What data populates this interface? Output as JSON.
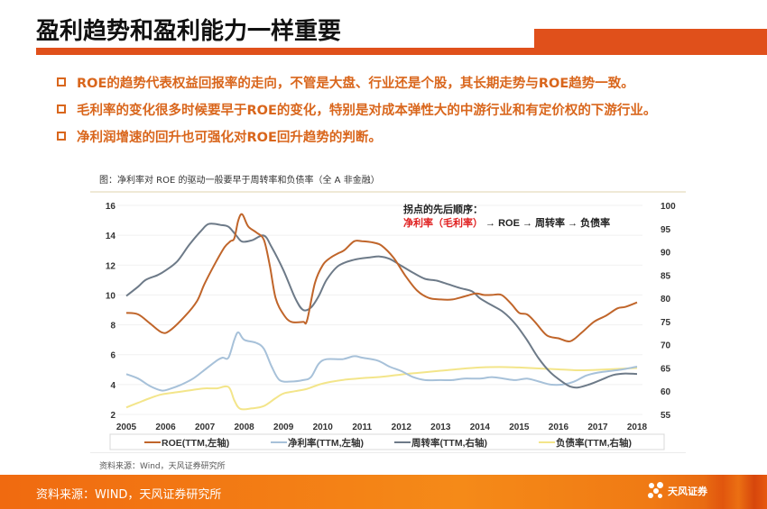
{
  "header": {
    "title": "盈利趋势和盈利能力一样重要"
  },
  "bullets": [
    "ROE的趋势代表权益回报率的走向，不管是大盘、行业还是个股，其长期走势与ROE趋势一致。",
    "毛利率的变化很多时候要早于ROE的变化，特别是对成本弹性大的中游行业和有定价权的下游行业。",
    "净利润增速的回升也可强化对ROE回升趋势的判断。"
  ],
  "figure": {
    "caption": "图：净利率对 ROE 的驱动一般要早于周转率和负债率（全 A 非金融）",
    "source": "资料来源：Wind，天风证券研究所"
  },
  "footer": {
    "source": "资料来源：WIND，天风证券研究所",
    "logo_text": "天风证券"
  },
  "chart_data": {
    "type": "line",
    "title": "净利率对 ROE 的驱动一般要早于周转率和负债率（全 A 非金融）",
    "annotation": {
      "line1": "拐点的先后顺序：",
      "line2_red": "净利率（毛利率）",
      "line2_rest": " → ROE → 周转率 → 负债率"
    },
    "x_ticks": [
      "2005",
      "2006",
      "2007",
      "2008",
      "2009",
      "2010",
      "2011",
      "2012",
      "2013",
      "2014",
      "2015",
      "2016",
      "2017",
      "2018"
    ],
    "xlim": [
      2005,
      2018
    ],
    "left_axis": {
      "ylim": [
        2,
        16
      ],
      "ticks": [
        "2",
        "4",
        "6",
        "8",
        "10",
        "12",
        "14",
        "16"
      ]
    },
    "right_axis": {
      "ylim": [
        55,
        100
      ],
      "ticks": [
        "55",
        "60",
        "65",
        "70",
        "75",
        "80",
        "85",
        "90",
        "95",
        "100"
      ]
    },
    "grid": true,
    "legend_position": "bottom",
    "series": [
      {
        "name": "ROE(TTM,左轴)",
        "axis": "left",
        "color": "#c0652a",
        "points": [
          [
            2005,
            8.8
          ],
          [
            2005.3,
            8.7
          ],
          [
            2005.6,
            8.1
          ],
          [
            2005.9,
            7.5
          ],
          [
            2006.1,
            7.6
          ],
          [
            2006.5,
            8.6
          ],
          [
            2006.8,
            9.6
          ],
          [
            2007.0,
            10.8
          ],
          [
            2007.3,
            12.3
          ],
          [
            2007.5,
            13.2
          ],
          [
            2007.65,
            13.6
          ],
          [
            2007.75,
            13.8
          ],
          [
            2007.85,
            15.0
          ],
          [
            2007.95,
            15.4
          ],
          [
            2008.1,
            14.6
          ],
          [
            2008.3,
            14.2
          ],
          [
            2008.5,
            13.7
          ],
          [
            2008.65,
            12.0
          ],
          [
            2008.8,
            9.8
          ],
          [
            2009.0,
            8.7
          ],
          [
            2009.2,
            8.2
          ],
          [
            2009.5,
            8.2
          ],
          [
            2009.6,
            8.3
          ],
          [
            2009.8,
            10.8
          ],
          [
            2010.0,
            12.0
          ],
          [
            2010.2,
            12.5
          ],
          [
            2010.4,
            12.8
          ],
          [
            2010.55,
            13.0
          ],
          [
            2010.8,
            13.6
          ],
          [
            2011.0,
            13.6
          ],
          [
            2011.3,
            13.5
          ],
          [
            2011.5,
            13.3
          ],
          [
            2011.8,
            12.5
          ],
          [
            2012.1,
            11.3
          ],
          [
            2012.4,
            10.3
          ],
          [
            2012.7,
            9.8
          ],
          [
            2013.0,
            9.7
          ],
          [
            2013.3,
            9.7
          ],
          [
            2013.6,
            9.9
          ],
          [
            2013.9,
            10.1
          ],
          [
            2014.1,
            10.0
          ],
          [
            2014.3,
            10.0
          ],
          [
            2014.55,
            10.0
          ],
          [
            2014.8,
            9.4
          ],
          [
            2015.0,
            8.8
          ],
          [
            2015.2,
            8.7
          ],
          [
            2015.4,
            8.2
          ],
          [
            2015.7,
            7.3
          ],
          [
            2016.0,
            7.1
          ],
          [
            2016.3,
            6.9
          ],
          [
            2016.6,
            7.5
          ],
          [
            2016.9,
            8.2
          ],
          [
            2017.2,
            8.6
          ],
          [
            2017.5,
            9.1
          ],
          [
            2017.7,
            9.2
          ],
          [
            2018.0,
            9.5
          ]
        ]
      },
      {
        "name": "净利率(TTM,左轴)",
        "axis": "left",
        "color": "#a7c1d9",
        "points": [
          [
            2005,
            4.7
          ],
          [
            2005.3,
            4.4
          ],
          [
            2005.6,
            3.9
          ],
          [
            2005.9,
            3.6
          ],
          [
            2006.1,
            3.7
          ],
          [
            2006.4,
            4.0
          ],
          [
            2006.7,
            4.4
          ],
          [
            2007.0,
            5.0
          ],
          [
            2007.3,
            5.6
          ],
          [
            2007.45,
            5.8
          ],
          [
            2007.6,
            5.8
          ],
          [
            2007.75,
            7.0
          ],
          [
            2007.85,
            7.5
          ],
          [
            2008.0,
            7.0
          ],
          [
            2008.3,
            6.8
          ],
          [
            2008.5,
            6.4
          ],
          [
            2008.7,
            5.2
          ],
          [
            2008.9,
            4.3
          ],
          [
            2009.2,
            4.2
          ],
          [
            2009.5,
            4.3
          ],
          [
            2009.7,
            4.5
          ],
          [
            2009.9,
            5.4
          ],
          [
            2010.1,
            5.7
          ],
          [
            2010.5,
            5.7
          ],
          [
            2010.8,
            5.9
          ],
          [
            2011.0,
            5.8
          ],
          [
            2011.4,
            5.6
          ],
          [
            2011.7,
            5.2
          ],
          [
            2012.0,
            4.9
          ],
          [
            2012.3,
            4.5
          ],
          [
            2012.6,
            4.3
          ],
          [
            2013.0,
            4.3
          ],
          [
            2013.3,
            4.3
          ],
          [
            2013.6,
            4.4
          ],
          [
            2014.0,
            4.4
          ],
          [
            2014.3,
            4.5
          ],
          [
            2014.6,
            4.4
          ],
          [
            2014.9,
            4.3
          ],
          [
            2015.2,
            4.4
          ],
          [
            2015.5,
            4.2
          ],
          [
            2015.8,
            4.0
          ],
          [
            2016.1,
            4.0
          ],
          [
            2016.4,
            4.2
          ],
          [
            2016.7,
            4.6
          ],
          [
            2017.0,
            4.8
          ],
          [
            2017.3,
            4.9
          ],
          [
            2017.6,
            5.0
          ],
          [
            2018.0,
            5.2
          ]
        ]
      },
      {
        "name": "周转率(TTM,右轴)",
        "axis": "right",
        "color": "#6d7a88",
        "points": [
          [
            2005,
            80.5
          ],
          [
            2005.3,
            82.5
          ],
          [
            2005.5,
            84.0
          ],
          [
            2005.8,
            85.0
          ],
          [
            2006.0,
            86.0
          ],
          [
            2006.3,
            88.0
          ],
          [
            2006.6,
            91.5
          ],
          [
            2006.9,
            94.5
          ],
          [
            2007.1,
            96.0
          ],
          [
            2007.4,
            95.8
          ],
          [
            2007.6,
            95.4
          ],
          [
            2007.8,
            93.5
          ],
          [
            2007.95,
            92.2
          ],
          [
            2008.2,
            92.5
          ],
          [
            2008.5,
            93.5
          ],
          [
            2008.7,
            91.0
          ],
          [
            2009.0,
            86.0
          ],
          [
            2009.3,
            80.0
          ],
          [
            2009.5,
            77.5
          ],
          [
            2009.7,
            78.0
          ],
          [
            2009.9,
            80.5
          ],
          [
            2010.1,
            84.0
          ],
          [
            2010.4,
            87.0
          ],
          [
            2010.8,
            88.3
          ],
          [
            2011.2,
            88.8
          ],
          [
            2011.45,
            89.0
          ],
          [
            2011.7,
            88.5
          ],
          [
            2012.0,
            87.0
          ],
          [
            2012.3,
            85.5
          ],
          [
            2012.6,
            84.2
          ],
          [
            2012.9,
            83.8
          ],
          [
            2013.2,
            83.0
          ],
          [
            2013.5,
            82.2
          ],
          [
            2013.8,
            81.5
          ],
          [
            2014.0,
            80.0
          ],
          [
            2014.3,
            78.5
          ],
          [
            2014.6,
            77.0
          ],
          [
            2014.9,
            74.5
          ],
          [
            2015.2,
            71.0
          ],
          [
            2015.5,
            67.0
          ],
          [
            2015.8,
            64.0
          ],
          [
            2016.1,
            62.0
          ],
          [
            2016.3,
            61.0
          ],
          [
            2016.5,
            60.8
          ],
          [
            2016.8,
            61.5
          ],
          [
            2017.1,
            62.5
          ],
          [
            2017.4,
            63.5
          ],
          [
            2017.7,
            63.8
          ],
          [
            2018.0,
            63.7
          ]
        ]
      },
      {
        "name": "负债率(TTM,右轴)",
        "axis": "right",
        "color": "#f3e58a",
        "points": [
          [
            2005,
            56.5
          ],
          [
            2005.3,
            57.5
          ],
          [
            2005.6,
            58.5
          ],
          [
            2005.9,
            59.3
          ],
          [
            2006.3,
            59.8
          ],
          [
            2006.7,
            60.3
          ],
          [
            2007.0,
            60.6
          ],
          [
            2007.3,
            60.6
          ],
          [
            2007.6,
            60.9
          ],
          [
            2007.75,
            58.0
          ],
          [
            2007.9,
            56.2
          ],
          [
            2008.2,
            56.3
          ],
          [
            2008.5,
            56.8
          ],
          [
            2008.8,
            58.5
          ],
          [
            2009.0,
            59.5
          ],
          [
            2009.3,
            60.0
          ],
          [
            2009.6,
            60.5
          ],
          [
            2009.9,
            61.4
          ],
          [
            2010.2,
            62.0
          ],
          [
            2010.6,
            62.5
          ],
          [
            2011.0,
            62.8
          ],
          [
            2011.5,
            63.1
          ],
          [
            2012.0,
            63.6
          ],
          [
            2012.5,
            64.0
          ],
          [
            2013.0,
            64.4
          ],
          [
            2013.5,
            64.8
          ],
          [
            2014.0,
            65.1
          ],
          [
            2014.5,
            65.2
          ],
          [
            2015.0,
            65.1
          ],
          [
            2015.5,
            64.9
          ],
          [
            2016.0,
            64.7
          ],
          [
            2016.5,
            64.5
          ],
          [
            2017.0,
            64.6
          ],
          [
            2017.5,
            64.8
          ],
          [
            2018.0,
            65.0
          ]
        ]
      }
    ]
  }
}
